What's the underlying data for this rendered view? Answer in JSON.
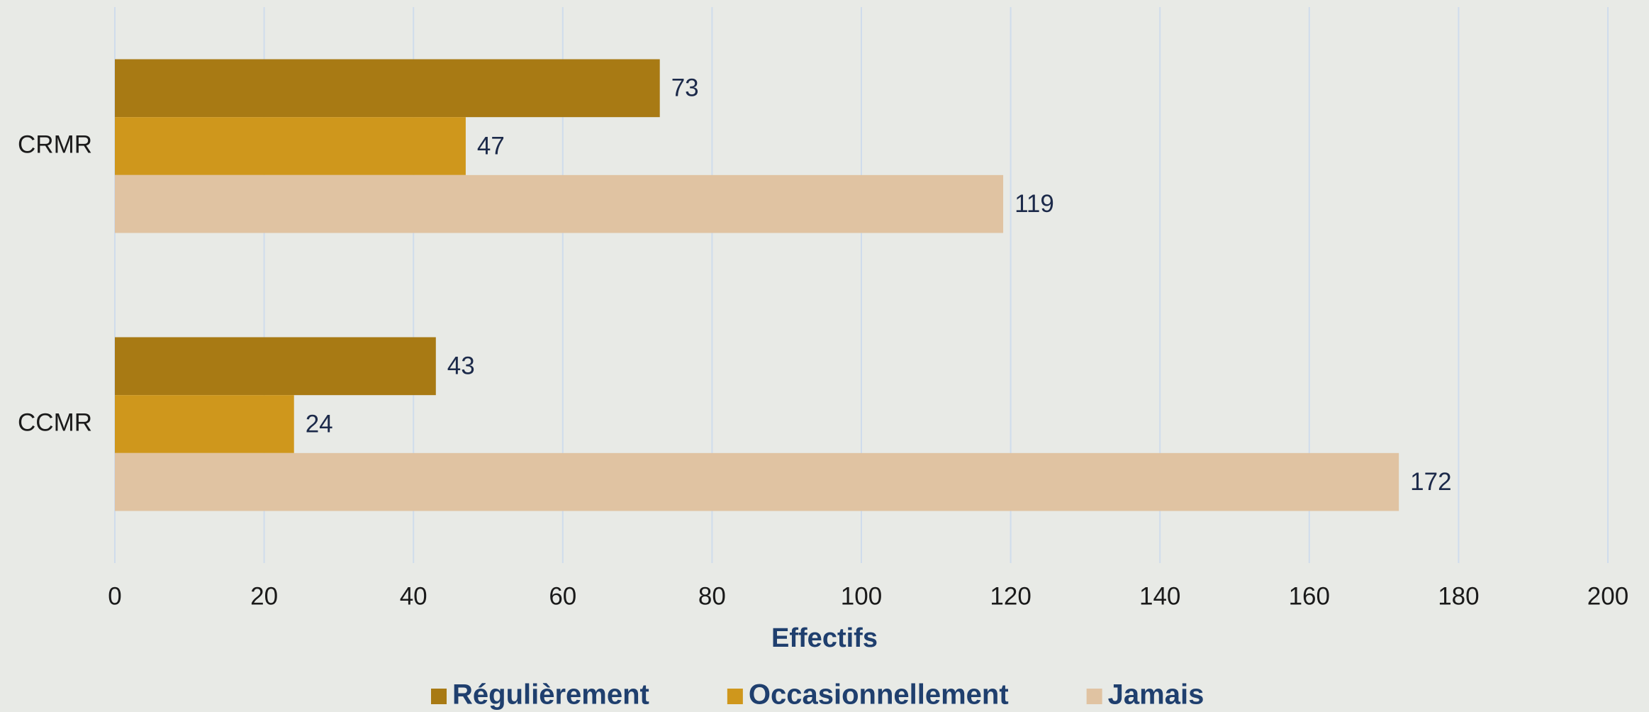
{
  "chart_data": {
    "type": "barh",
    "x_label": "Effectifs",
    "categories": [
      "CRMR",
      "CCMR"
    ],
    "series": [
      {
        "name": "Régulièrement",
        "color": "#a87a14",
        "values": [
          73,
          43
        ]
      },
      {
        "name": "Occasionnellement",
        "color": "#cf971c",
        "values": [
          47,
          24
        ]
      },
      {
        "name": "Jamais",
        "color": "#e0c3a2",
        "values": [
          119,
          172
        ]
      }
    ],
    "xlim": [
      0,
      200
    ],
    "xticks": [
      0,
      20,
      40,
      60,
      80,
      100,
      120,
      140,
      160,
      180,
      200
    ],
    "grid": true,
    "legend": "bottom"
  }
}
